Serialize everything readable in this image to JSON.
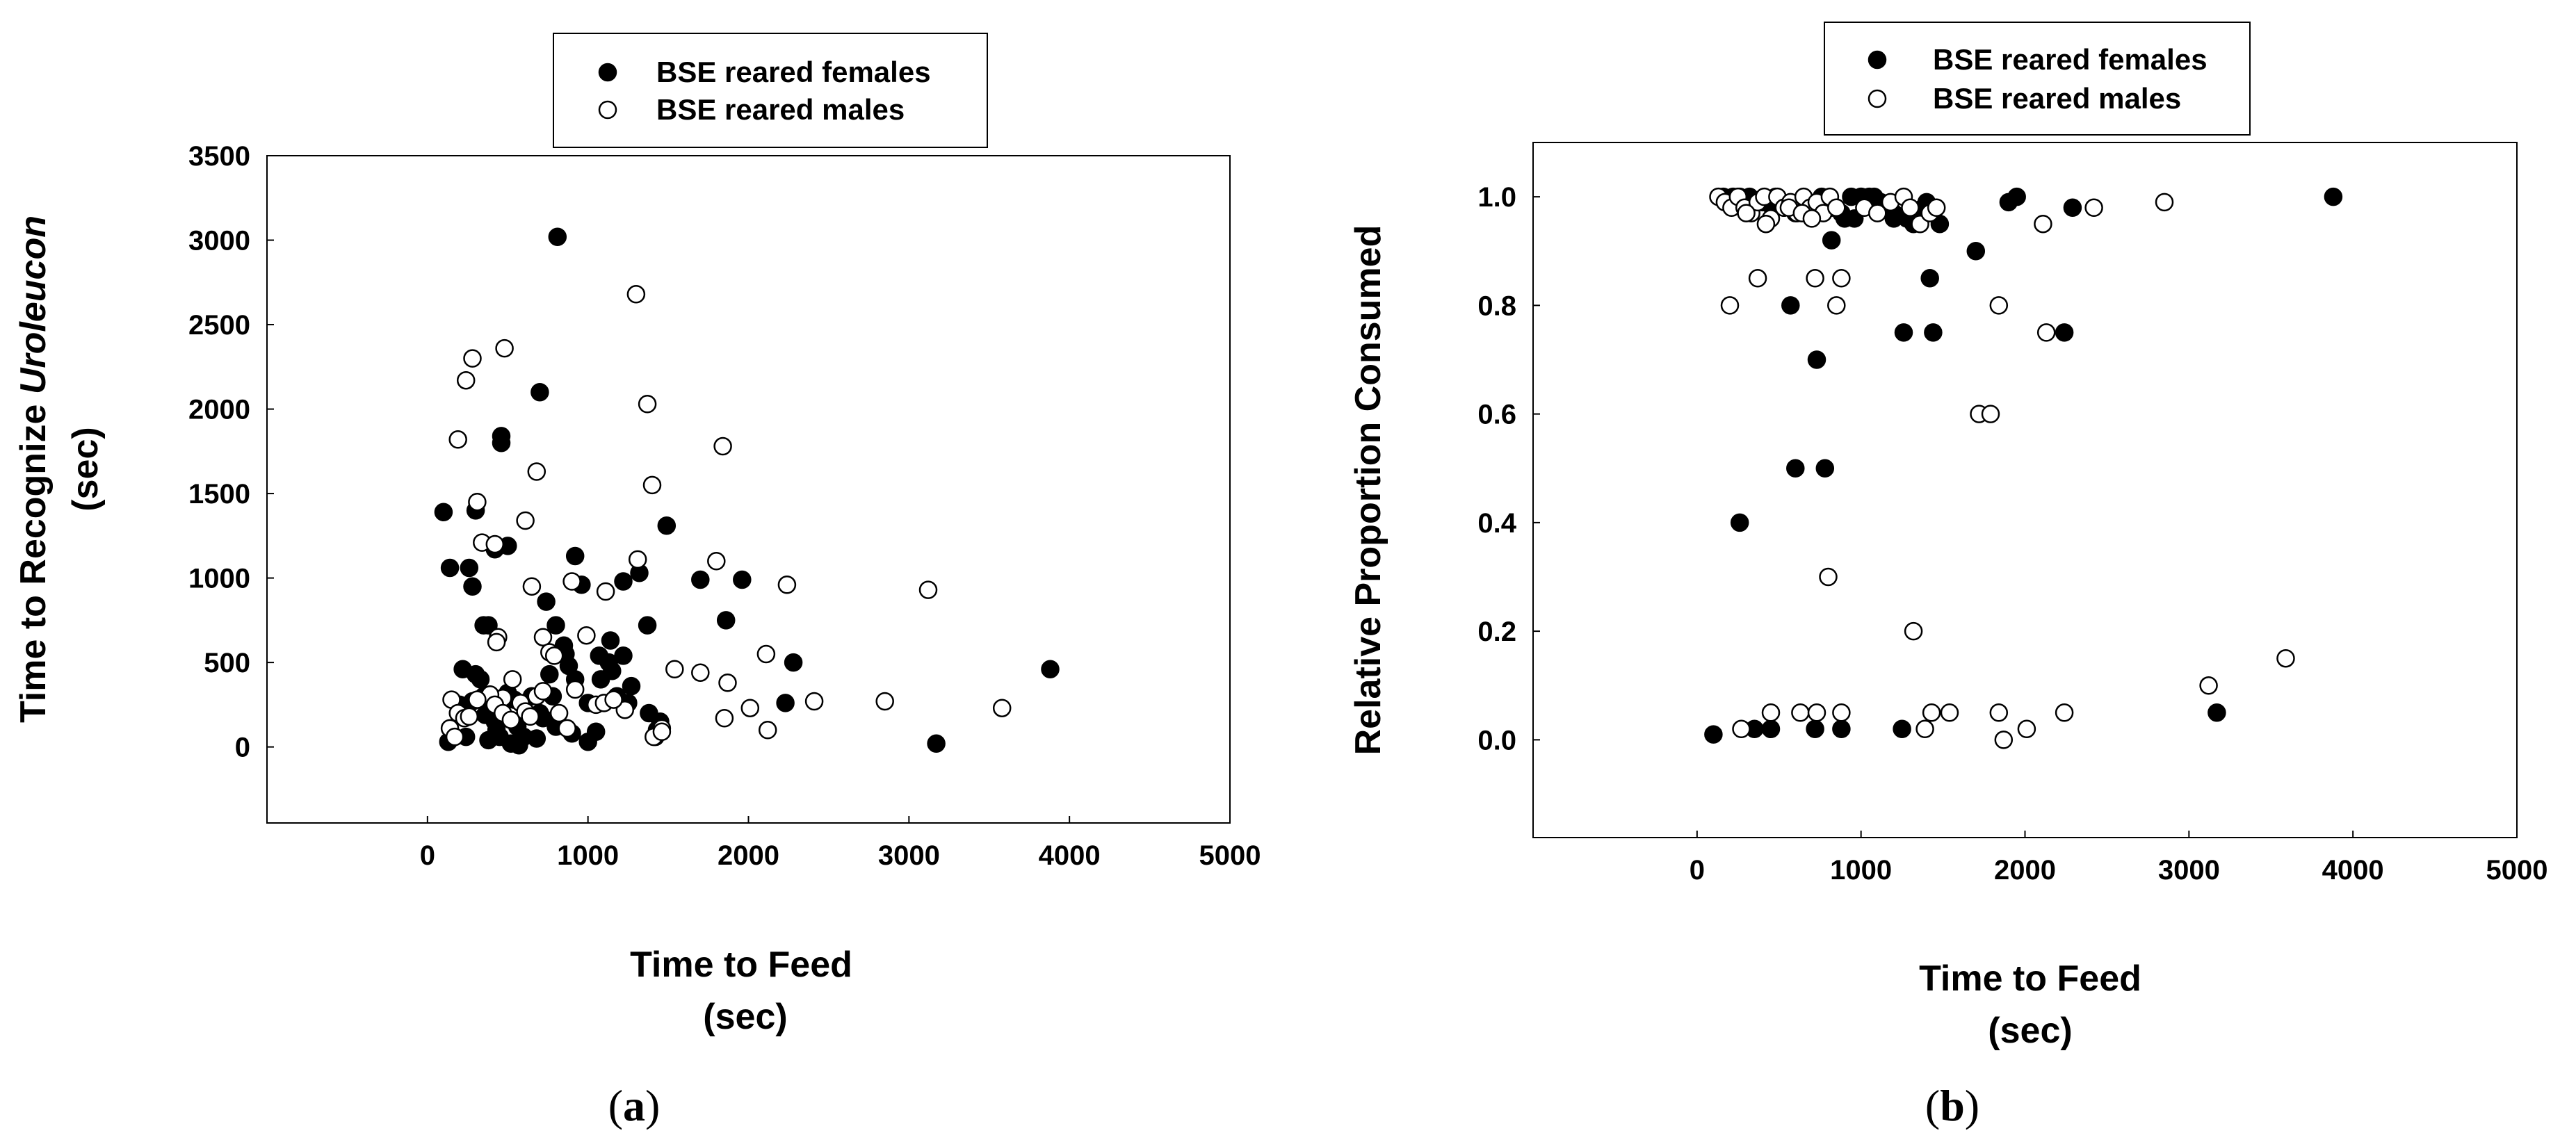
{
  "chart_data": [
    {
      "type": "scatter",
      "panel_label": "a",
      "title": "",
      "xlabel_lines": [
        "Time to Feed",
        "(sec)"
      ],
      "ylabel_parts": [
        "Time to Recognize ",
        "Uroleucon"
      ],
      "ylabel_unit": "(sec)",
      "xlim": [
        -1000,
        5000
      ],
      "ylim": [
        -450,
        3500
      ],
      "x_ticks": [
        "0",
        "1000",
        "2000",
        "3000",
        "4000",
        "5000"
      ],
      "y_ticks": [
        "0",
        "500",
        "1000",
        "1500",
        "2000",
        "2500",
        "3000",
        "3500"
      ],
      "grid": false,
      "legend": {
        "position": "top",
        "entries": [
          "BSE reared females",
          "BSE reared males"
        ]
      },
      "series": [
        {
          "name": "BSE reared females",
          "marker": "filled-circle",
          "color": "#000000",
          "x": [
            810,
            700,
            460,
            460,
            100,
            140,
            260,
            300,
            500,
            920,
            1220,
            1320,
            1370,
            1490,
            1700,
            1860,
            1960,
            2280,
            2230,
            3880,
            3170,
            1000,
            1070,
            1130,
            1140,
            1220,
            1270,
            1430,
            380,
            350,
            420,
            740,
            800,
            850,
            860,
            880,
            920,
            960,
            220,
            280,
            300,
            330,
            350,
            360,
            400,
            420,
            430,
            470,
            500,
            540,
            560,
            600,
            650,
            700,
            720,
            760,
            780,
            1050,
            1080,
            1150,
            1180,
            1250,
            1380,
            1420,
            1450,
            130,
            200,
            240,
            280,
            350,
            380,
            450,
            520,
            570,
            680,
            800,
            900,
            1000
          ],
          "y": [
            3020,
            2100,
            1840,
            1800,
            1390,
            1060,
            1060,
            1400,
            1190,
            1130,
            980,
            1030,
            720,
            1310,
            990,
            750,
            990,
            500,
            260,
            460,
            20,
            260,
            540,
            500,
            630,
            540,
            360,
            100,
            720,
            720,
            1170,
            860,
            720,
            600,
            550,
            480,
            400,
            960,
            460,
            950,
            430,
            400,
            270,
            190,
            210,
            150,
            100,
            290,
            320,
            280,
            120,
            60,
            300,
            200,
            170,
            430,
            300,
            90,
            400,
            450,
            300,
            260,
            200,
            60,
            150,
            30,
            250,
            60,
            270,
            300,
            40,
            60,
            20,
            10,
            50,
            120,
            80,
            30
          ]
        },
        {
          "name": "BSE reared males",
          "marker": "open-circle",
          "color": "#000000",
          "x": [
            240,
            280,
            190,
            480,
            1300,
            1370,
            680,
            1840,
            1400,
            310,
            340,
            420,
            1310,
            1800,
            1110,
            2240,
            3120,
            610,
            650,
            900,
            990,
            720,
            440,
            430,
            1540,
            1700,
            1870,
            2110,
            2410,
            2850,
            3580,
            2010,
            2120,
            1850,
            1460,
            1410,
            1230,
            920,
            760,
            790,
            530,
            470,
            390,
            310,
            150,
            190,
            230,
            260,
            140,
            170,
            420,
            470,
            520,
            580,
            610,
            640,
            680,
            720,
            820,
            870,
            1050,
            1100,
            1160,
            1460
          ],
          "y": [
            2170,
            2300,
            1820,
            2360,
            2680,
            2030,
            1630,
            1780,
            1550,
            1450,
            1210,
            1200,
            1110,
            1100,
            920,
            960,
            930,
            1340,
            950,
            980,
            660,
            650,
            650,
            620,
            460,
            440,
            380,
            550,
            270,
            270,
            230,
            230,
            100,
            170,
            110,
            60,
            220,
            340,
            560,
            540,
            400,
            290,
            310,
            280,
            280,
            200,
            170,
            180,
            110,
            60,
            250,
            200,
            160,
            260,
            210,
            180,
            300,
            330,
            200,
            110,
            250,
            260,
            280,
            90
          ]
        }
      ]
    },
    {
      "type": "scatter",
      "panel_label": "b",
      "title": "",
      "xlabel_lines": [
        "Time to Feed",
        "(sec)"
      ],
      "ylabel": "Relative Proportion Consumed",
      "xlim": [
        -1000,
        5000
      ],
      "ylim": [
        -0.18,
        1.1
      ],
      "x_ticks": [
        "0",
        "1000",
        "2000",
        "3000",
        "4000",
        "5000"
      ],
      "y_ticks": [
        "0.0",
        "0.2",
        "0.4",
        "0.6",
        "0.8",
        "1.0"
      ],
      "grid": false,
      "legend": {
        "position": "top",
        "entries": [
          "BSE reared females",
          "BSE reared males"
        ]
      },
      "series": [
        {
          "name": "BSE reared females",
          "marker": "filled-circle",
          "color": "#000000",
          "x": [
            100,
            350,
            450,
            720,
            880,
            1250,
            3170,
            260,
            600,
            780,
            730,
            570,
            1260,
            1440,
            2240,
            1420,
            1700,
            1950,
            1900,
            2290,
            3880,
            820,
            900,
            960,
            1000,
            1050,
            1080,
            1120,
            1160,
            1200,
            1280,
            1320,
            1380,
            1440,
            1480,
            480,
            530,
            600,
            680,
            760,
            820,
            880,
            940,
            1000,
            1060,
            1120,
            1200,
            1300,
            1400,
            160,
            220,
            260,
            320,
            400,
            460
          ],
          "y": [
            0.01,
            0.02,
            0.02,
            0.02,
            0.02,
            0.02,
            0.05,
            0.4,
            0.5,
            0.5,
            0.7,
            0.8,
            0.75,
            0.75,
            0.75,
            0.85,
            0.9,
            1.0,
            0.99,
            0.98,
            1.0,
            0.92,
            0.96,
            0.96,
            1.0,
            1.0,
            1.0,
            0.99,
            0.98,
            0.97,
            0.96,
            0.95,
            0.98,
            0.97,
            0.95,
            1.0,
            0.98,
            0.97,
            0.99,
            1.0,
            0.98,
            0.97,
            1.0,
            1.0,
            0.99,
            0.98,
            0.96,
            0.97,
            0.99,
            1.0,
            1.0,
            1.0,
            1.0,
            0.99,
            0.98
          ]
        },
        {
          "name": "BSE reared males",
          "marker": "open-circle",
          "color": "#000000",
          "x": [
            270,
            450,
            630,
            730,
            880,
            1390,
            1430,
            1540,
            1840,
            1870,
            2010,
            2240,
            3120,
            3590,
            800,
            1320,
            1720,
            1790,
            200,
            370,
            720,
            850,
            880,
            1840,
            2130,
            2110,
            2420,
            2850,
            130,
            170,
            210,
            250,
            290,
            330,
            370,
            410,
            450,
            490,
            530,
            570,
            610,
            650,
            690,
            730,
            770,
            810,
            850,
            1020,
            1100,
            1180,
            1260,
            1300,
            1360,
            1420,
            1460,
            300,
            420,
            560,
            640,
            700
          ],
          "y": [
            0.02,
            0.05,
            0.05,
            0.05,
            0.05,
            0.02,
            0.05,
            0.05,
            0.05,
            0.0,
            0.02,
            0.05,
            0.1,
            0.15,
            0.3,
            0.2,
            0.6,
            0.6,
            0.8,
            0.85,
            0.85,
            0.8,
            0.85,
            0.8,
            0.75,
            0.95,
            0.98,
            0.99,
            1.0,
            0.99,
            0.98,
            1.0,
            0.98,
            0.97,
            0.99,
            1.0,
            0.96,
            1.0,
            0.98,
            0.99,
            0.97,
            1.0,
            0.98,
            0.99,
            0.97,
            1.0,
            0.98,
            0.98,
            0.97,
            0.99,
            1.0,
            0.98,
            0.95,
            0.97,
            0.98,
            0.97,
            0.95,
            0.98,
            0.97,
            0.96
          ]
        }
      ]
    }
  ]
}
